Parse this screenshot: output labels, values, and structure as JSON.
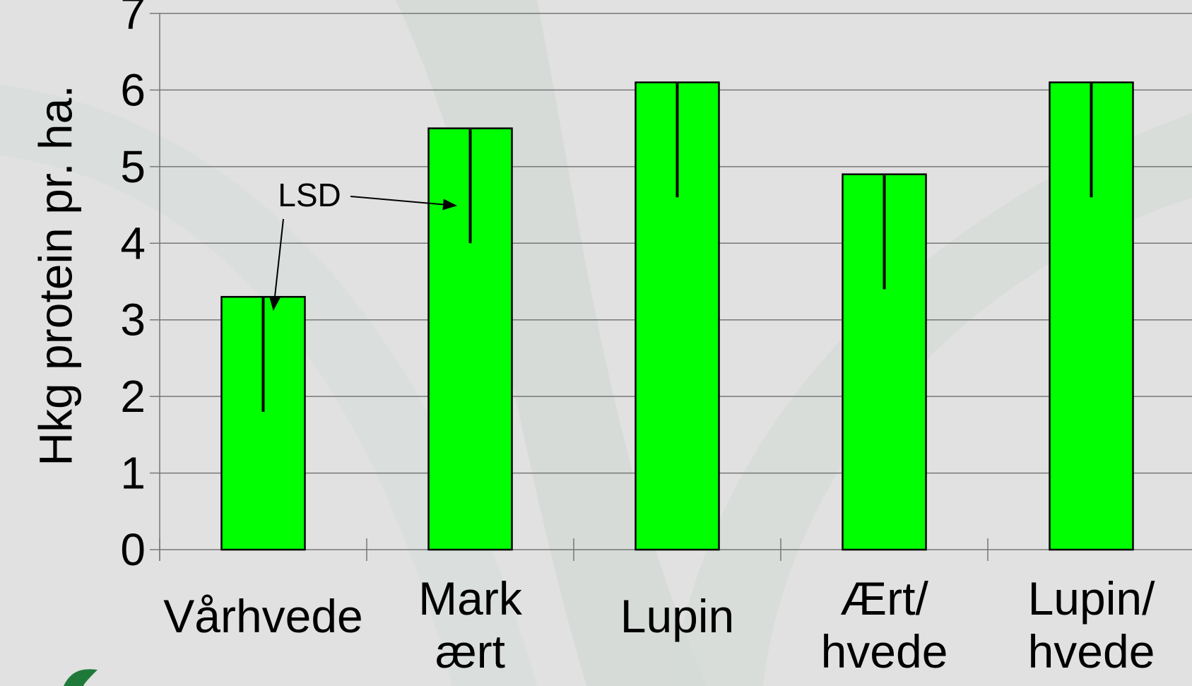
{
  "chart_data": {
    "type": "bar",
    "ylabel": "Hkg protein pr. ha.",
    "annotation": "LSD",
    "categories": [
      [
        "Vårhvede"
      ],
      [
        "Mark",
        "ært"
      ],
      [
        "Lupin"
      ],
      [
        "Ært/",
        "hvede"
      ],
      [
        "Lupin/",
        "hvede"
      ]
    ],
    "values": [
      3.3,
      5.5,
      6.1,
      4.9,
      6.1
    ],
    "errors": [
      1.5,
      1.5,
      1.5,
      1.5,
      1.5
    ],
    "color": "#00ff00",
    "ylim": [
      0,
      7
    ],
    "yticks": [
      0,
      1,
      2,
      3,
      4,
      5,
      6,
      7
    ],
    "grid": true
  }
}
